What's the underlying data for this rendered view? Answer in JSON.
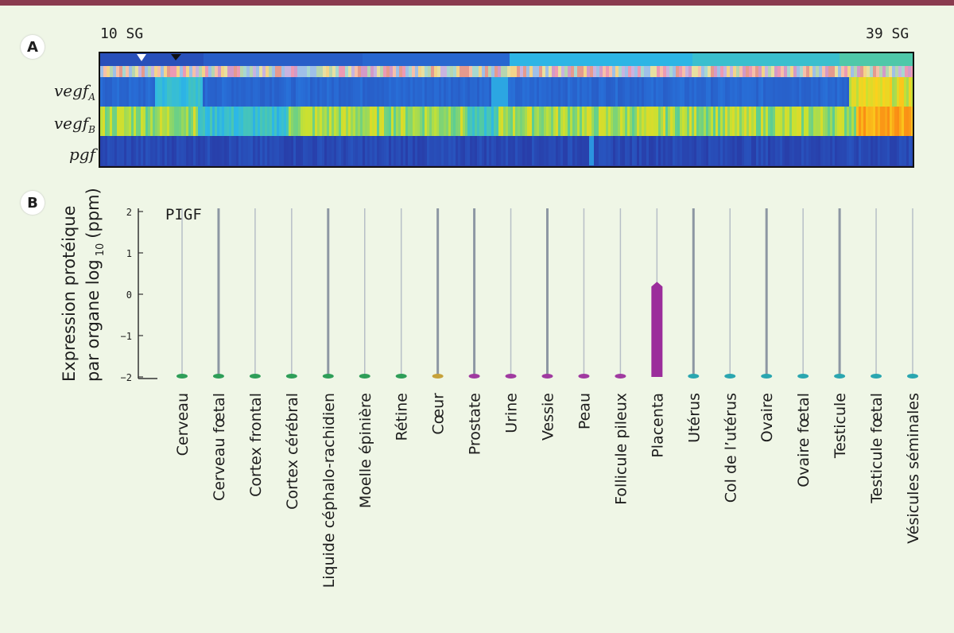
{
  "panel_a": {
    "badge": "A",
    "label_start": "10 SG",
    "label_end": "39 SG",
    "genes": [
      {
        "name": "vegf",
        "sub": "A"
      },
      {
        "name": "vegf",
        "sub": "B"
      },
      {
        "name": "pgf",
        "sub": ""
      }
    ]
  },
  "panel_b": {
    "badge": "B"
  },
  "chart_data": {
    "type": "bar",
    "title": "PIGF",
    "ylabel_line1": "Expression protéique",
    "ylabel_line2": "par organe log",
    "ylabel_sub": "10",
    "ylabel_unit": "(ppm)",
    "yticks": [
      {
        "value": 2,
        "label": "2"
      },
      {
        "value": 1,
        "label": "1"
      },
      {
        "value": 0,
        "label": "0"
      },
      {
        "value": -1,
        "label": "−1"
      },
      {
        "value": -2,
        "label": "−2"
      }
    ],
    "ylim": [
      -2,
      2
    ],
    "categories": [
      "Cerveau",
      "Cerveau fœtal",
      "Cortex frontal",
      "Cortex cérébral",
      "Liquide céphalo-rachidien",
      "Moelle épinière",
      "Rétine",
      "Cœur",
      "Prostate",
      "Urine",
      "Vessie",
      "Peau",
      "Follicule pileux",
      "Placenta",
      "Utérus",
      "Col de l’utérus",
      "Ovaire",
      "Ovaire fœtal",
      "Testicule",
      "Testicule fœtal",
      "Vésicules séminales"
    ],
    "values": [
      -2,
      -2,
      -2,
      -2,
      -2,
      -2,
      -2,
      -2,
      -2,
      -2,
      -2,
      -2,
      -2,
      0.3,
      -2,
      -2,
      -2,
      -2,
      -2,
      -2,
      -2
    ],
    "colors": [
      "#2e9e58",
      "#2e9e58",
      "#2e9e58",
      "#2e9e58",
      "#2e9e58",
      "#2e9e58",
      "#2e9e58",
      "#c6a23a",
      "#a03aa0",
      "#a03aa0",
      "#a03aa0",
      "#a03aa0",
      "#a03aa0",
      "#9b2d9b",
      "#2aa6b0",
      "#2aa6b0",
      "#2aa6b0",
      "#2aa6b0",
      "#2aa6b0",
      "#2aa6b0",
      "#2aa6b0"
    ],
    "grid": false,
    "legend": "none"
  }
}
